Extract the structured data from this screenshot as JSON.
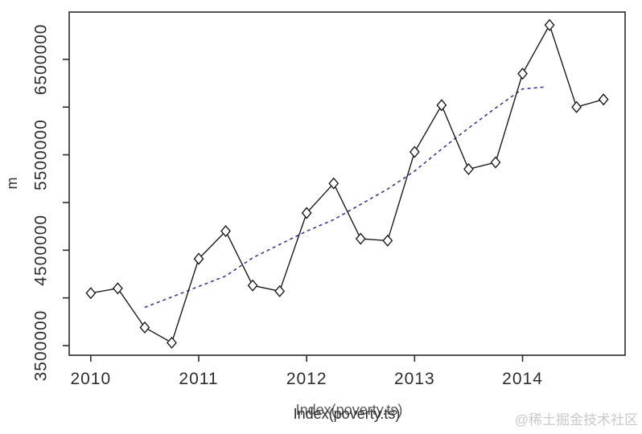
{
  "watermark": "@稀土掘金技术社区",
  "chart_data": {
    "type": "line",
    "title": "",
    "xlabel": "Index(poverty.ts)",
    "xlabel_double_printed": true,
    "ylabel": "m",
    "x": [
      2010.0,
      2010.25,
      2010.5,
      2010.75,
      2011.0,
      2011.25,
      2011.5,
      2011.75,
      2012.0,
      2012.25,
      2012.5,
      2012.75,
      2013.0,
      2013.25,
      2013.5,
      2013.75,
      2014.0,
      2014.25,
      2014.5,
      2014.75
    ],
    "series": [
      {
        "name": "poverty.ts",
        "type": "line-with-diamond-markers",
        "color": "#1c1c1c",
        "values": [
          4050000,
          4100000,
          3690000,
          3530000,
          4410000,
          4700000,
          4130000,
          4070000,
          4890000,
          5200000,
          4620000,
          4600000,
          5530000,
          6020000,
          5350000,
          5420000,
          6350000,
          6860000,
          6000000,
          6080000
        ]
      },
      {
        "name": "trend",
        "type": "dashed-line",
        "color": "#38389c",
        "x": [
          2010.5,
          2010.75,
          2011.0,
          2011.25,
          2011.5,
          2011.75,
          2012.0,
          2012.25,
          2012.5,
          2012.75,
          2013.0,
          2013.25,
          2013.5,
          2013.75,
          2014.0,
          2014.2
        ],
        "values": [
          3900000,
          4010000,
          4120000,
          4230000,
          4420000,
          4560000,
          4700000,
          4820000,
          4980000,
          5140000,
          5330000,
          5560000,
          5780000,
          5990000,
          6190000,
          6210000
        ]
      }
    ],
    "xticks": [
      2010,
      2011,
      2012,
      2013,
      2014
    ],
    "xtick_labels": [
      "2010",
      "2011",
      "2012",
      "2013",
      "2014"
    ],
    "yticks": [
      3500000,
      4000000,
      4500000,
      5000000,
      5500000,
      6000000,
      6500000
    ],
    "ytick_labels": [
      "3500000",
      "",
      "4500000",
      "",
      "5500000",
      "",
      "6500000"
    ],
    "xlim": [
      2009.8,
      2014.95
    ],
    "ylim": [
      3399000,
      6996000
    ],
    "grid": false,
    "legend": null,
    "box": true,
    "colors": {
      "axis": "#2b2b2b",
      "text": "#2e2e2e",
      "series": "#1c1c1c",
      "trend": "#38389c",
      "marker_fill": "#ffffff",
      "watermark": "#c9c9c9",
      "background": "#ffffff"
    }
  }
}
